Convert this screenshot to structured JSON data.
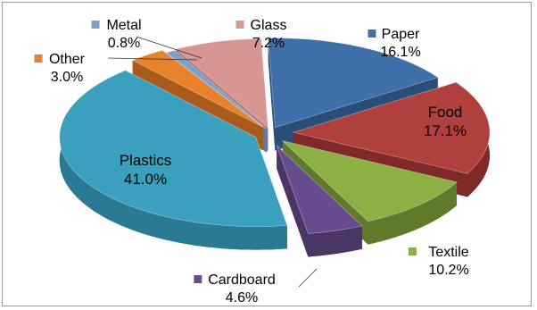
{
  "chart_data": {
    "type": "pie",
    "variant": "3d-exploded",
    "title": "",
    "legend": "none",
    "categories": [
      "Paper",
      "Food",
      "Textile",
      "Cardboard",
      "Plastics",
      "Other",
      "Metal",
      "Glass"
    ],
    "values": [
      16.1,
      17.1,
      10.2,
      4.6,
      41.0,
      3.0,
      0.8,
      7.2
    ],
    "value_labels": [
      "16.1%",
      "17.1%",
      "10.2%",
      "4.6%",
      "41.0%",
      "3.0%",
      "0.8%",
      "7.2%"
    ],
    "colors": [
      "#3F6FA9",
      "#B0403D",
      "#8CB043",
      "#674C8D",
      "#3BA0BE",
      "#E8822B",
      "#7F9FCB",
      "#D79593"
    ],
    "side_colors": [
      "#2B4E79",
      "#7E2A28",
      "#5F7A2B",
      "#4A3566",
      "#2B7A93",
      "#A85B1A",
      "#5C7A9E",
      "#A56C6A"
    ]
  }
}
